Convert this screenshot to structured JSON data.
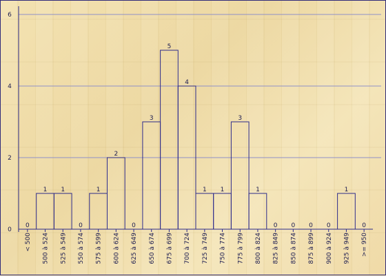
{
  "chart_data": {
    "type": "bar",
    "title": "",
    "xlabel": "",
    "ylabel": "",
    "categories": [
      "< 500",
      "500 à 524",
      "525 à 549",
      "550 à 574",
      "575 à 599",
      "600 à 624",
      "625 à 649",
      "650 à 674",
      "675 à 699",
      "700 à 724",
      "725 à 749",
      "750 à 774",
      "775 à 799",
      "800 à 824",
      "825 à 849",
      "850 à 874",
      "875 à 899",
      "900 à 924",
      "925 à 949",
      ">= 950"
    ],
    "values": [
      0,
      1,
      1,
      0,
      1,
      2,
      0,
      3,
      5,
      4,
      1,
      1,
      3,
      1,
      0,
      0,
      0,
      0,
      1,
      0
    ],
    "ylim": [
      0,
      6
    ],
    "yticks": [
      0,
      2,
      4,
      6
    ],
    "grid": true,
    "colors": {
      "bar_stroke": "#2c2a8a",
      "grid": "#8f90c8",
      "axis": "#2c2a8a",
      "text": "#1b1b50"
    }
  }
}
